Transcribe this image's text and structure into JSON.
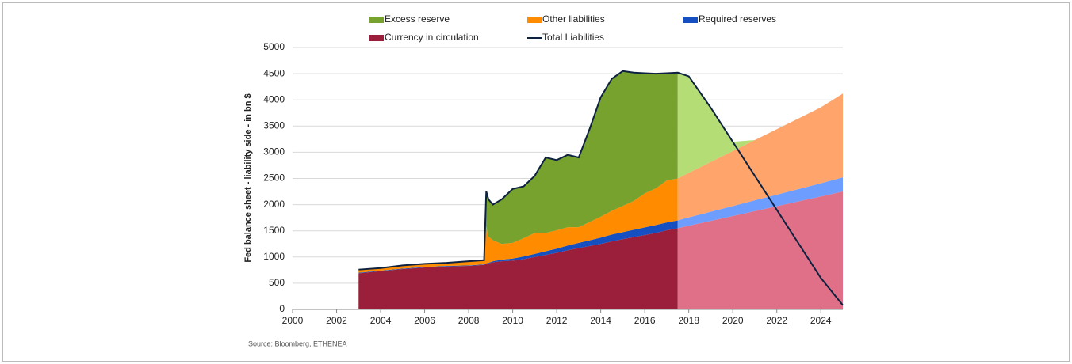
{
  "chart_data": {
    "type": "stacked_area",
    "y_label": "Fed balance sheet - liability side - in bn $",
    "source": "Source: Bloomberg, ETHENEA",
    "xlim": [
      2000,
      2025
    ],
    "xticks": [
      2000,
      2002,
      2004,
      2006,
      2008,
      2010,
      2012,
      2014,
      2016,
      2018,
      2020,
      2022,
      2024
    ],
    "ylim": [
      0,
      5000
    ],
    "yticks": [
      0,
      500,
      1000,
      1500,
      2000,
      2500,
      3000,
      3500,
      4000,
      4500,
      5000
    ],
    "grid": true,
    "forecast_from": 2017.5,
    "x": [
      2003,
      2004,
      2005,
      2006,
      2007,
      2008,
      2008.7,
      2008.8,
      2008.9,
      2009.1,
      2009.5,
      2010,
      2010.5,
      2011,
      2011.5,
      2012,
      2012.5,
      2013,
      2013.5,
      2014,
      2014.5,
      2015,
      2015.5,
      2016,
      2016.5,
      2017,
      2017.5,
      2018,
      2019,
      2020,
      2021,
      2022,
      2023,
      2024,
      2025
    ],
    "series": [
      {
        "name": "Currency in circulation",
        "color": "#9b1f3a",
        "forecast_color": "#e07088",
        "values": [
          690,
          730,
          770,
          800,
          820,
          830,
          850,
          870,
          880,
          900,
          920,
          930,
          960,
          1000,
          1040,
          1080,
          1130,
          1170,
          1210,
          1250,
          1300,
          1340,
          1380,
          1420,
          1460,
          1510,
          1550,
          1597,
          1690,
          1783,
          1877,
          1970,
          2063,
          2157,
          2250
        ]
      },
      {
        "name": "Required reserves",
        "color": "#1650c0",
        "forecast_color": "#6d9eff",
        "values": [
          10,
          10,
          10,
          10,
          10,
          10,
          10,
          10,
          10,
          20,
          30,
          40,
          50,
          60,
          70,
          80,
          90,
          100,
          110,
          120,
          130,
          135,
          140,
          145,
          150,
          150,
          150,
          160,
          175,
          190,
          205,
          220,
          235,
          250,
          270
        ]
      },
      {
        "name": "Other liabilities",
        "color": "#ff8c00",
        "forecast_color": "#ffa56b",
        "values": [
          60,
          50,
          60,
          60,
          60,
          80,
          80,
          700,
          500,
          400,
          300,
          300,
          350,
          400,
          350,
          350,
          350,
          300,
          350,
          400,
          450,
          500,
          550,
          650,
          700,
          800,
          800,
          850,
          950,
          1050,
          1150,
          1250,
          1350,
          1450,
          1600
        ]
      },
      {
        "name": "Excess reserve",
        "color": "#77a22e",
        "forecast_color": "#b5dd76",
        "values": [
          0,
          0,
          0,
          0,
          0,
          0,
          0,
          670,
          710,
          680,
          850,
          1030,
          990,
          1090,
          1440,
          1340,
          1380,
          1330,
          1780,
          2280,
          2520,
          2575,
          2450,
          2295,
          2190,
          2050,
          2020,
          1843,
          1035,
          177,
          0,
          0,
          0,
          0,
          0
        ]
      },
      {
        "name": "Total Liabilities",
        "color": "#0d2240",
        "kind": "line",
        "values": [
          760,
          790,
          840,
          870,
          890,
          920,
          940,
          2250,
          2100,
          2000,
          2100,
          2300,
          2350,
          2550,
          2900,
          2850,
          2950,
          2900,
          3450,
          4050,
          4400,
          4550,
          4520,
          4510,
          4500,
          4510,
          4520,
          4450,
          3850,
          3200,
          2550,
          1900,
          1250,
          600,
          80
        ]
      }
    ],
    "legend_order": [
      3,
      2,
      1,
      0,
      4
    ]
  }
}
